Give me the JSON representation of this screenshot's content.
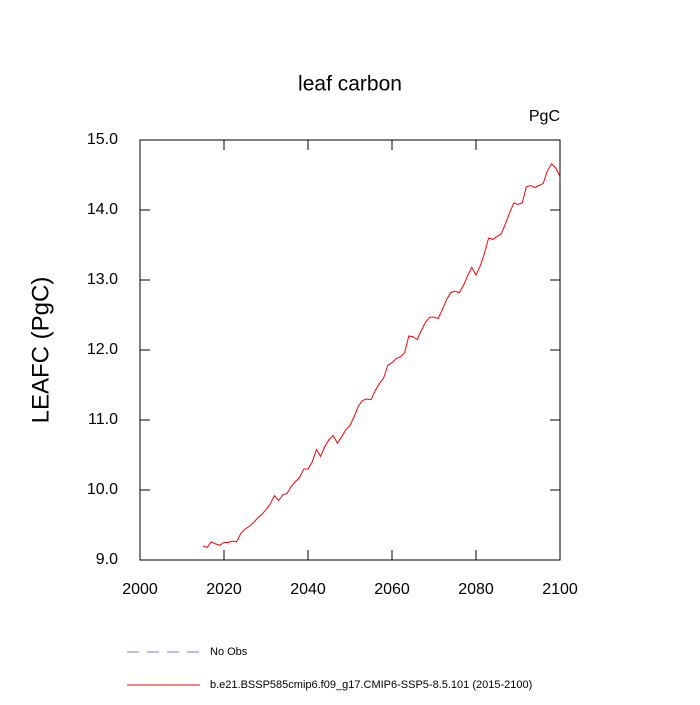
{
  "chart_data": {
    "type": "line",
    "title": "leaf carbon",
    "units": "PgC",
    "y_label": "LEAFC  (PgC)",
    "x": [
      2015,
      2016,
      2017,
      2018,
      2019,
      2020,
      2021,
      2022,
      2023,
      2024,
      2025,
      2026,
      2027,
      2028,
      2029,
      2030,
      2031,
      2032,
      2033,
      2034,
      2035,
      2036,
      2037,
      2038,
      2039,
      2040,
      2041,
      2042,
      2043,
      2044,
      2045,
      2046,
      2047,
      2048,
      2049,
      2050,
      2051,
      2052,
      2053,
      2054,
      2055,
      2056,
      2057,
      2058,
      2059,
      2060,
      2061,
      2062,
      2063,
      2064,
      2065,
      2066,
      2067,
      2068,
      2069,
      2070,
      2071,
      2072,
      2073,
      2074,
      2075,
      2076,
      2077,
      2078,
      2079,
      2080,
      2081,
      2082,
      2083,
      2084,
      2085,
      2086,
      2087,
      2088,
      2089,
      2090,
      2091,
      2092,
      2093,
      2094,
      2095,
      2096,
      2097,
      2098,
      2099,
      2100
    ],
    "series": [
      {
        "name": "No Obs",
        "color": "#7777ee",
        "dash": true,
        "values": [
          null,
          null,
          null,
          null,
          null,
          null,
          null,
          null,
          null,
          null,
          null,
          null,
          null,
          null,
          null,
          null,
          null,
          null,
          null,
          null,
          null,
          null,
          null,
          null,
          null,
          null,
          null,
          null,
          null,
          null,
          null,
          null,
          null,
          null,
          null,
          null,
          null,
          null,
          null,
          null,
          null,
          null,
          null,
          null,
          null,
          null,
          null,
          null,
          null,
          null,
          null,
          null,
          null,
          null,
          null,
          null,
          null,
          null,
          null,
          null,
          null,
          null,
          null,
          null,
          null,
          null,
          null,
          null,
          null,
          null,
          null,
          null,
          null,
          null,
          null,
          null,
          null,
          null,
          null,
          null,
          null,
          null,
          null,
          null,
          null,
          null
        ]
      },
      {
        "name": "b.e21.BSSP585cmip6.f09_g17.CMIP6-SSP5-8.5.101 (2015-2100)",
        "color": "#ff0000",
        "dash": false,
        "values": [
          9.2,
          9.18,
          9.26,
          9.23,
          9.21,
          9.25,
          9.25,
          9.27,
          9.26,
          9.38,
          9.44,
          9.48,
          9.53,
          9.6,
          9.65,
          9.72,
          9.8,
          9.92,
          9.85,
          9.93,
          9.95,
          10.05,
          10.12,
          10.18,
          10.3,
          10.3,
          10.4,
          10.58,
          10.48,
          10.62,
          10.72,
          10.78,
          10.67,
          10.76,
          10.86,
          10.92,
          11.05,
          11.2,
          11.28,
          11.3,
          11.29,
          11.42,
          11.52,
          11.6,
          11.78,
          11.82,
          11.88,
          11.9,
          11.96,
          12.2,
          12.19,
          12.15,
          12.28,
          12.4,
          12.47,
          12.47,
          12.45,
          12.58,
          12.72,
          12.82,
          12.84,
          12.82,
          12.92,
          13.06,
          13.18,
          13.07,
          13.2,
          13.38,
          13.6,
          13.58,
          13.62,
          13.66,
          13.8,
          13.96,
          14.1,
          14.08,
          14.1,
          14.33,
          14.35,
          14.32,
          14.35,
          14.38,
          14.56,
          14.66,
          14.6,
          14.48
        ]
      }
    ],
    "xlim": [
      2000,
      2100
    ],
    "xticks": [
      2000,
      2020,
      2040,
      2060,
      2080,
      2100
    ],
    "ylim": [
      9,
      15
    ],
    "yticks": [
      {
        "value": 9,
        "label": "9.0"
      },
      {
        "value": 10,
        "label": "10.0"
      },
      {
        "value": 11,
        "label": "11.0"
      },
      {
        "value": 12,
        "label": "12.0"
      },
      {
        "value": 13,
        "label": "13.0"
      },
      {
        "value": 14,
        "label": "14.0"
      },
      {
        "value": 15,
        "label": "15.0"
      }
    ]
  }
}
